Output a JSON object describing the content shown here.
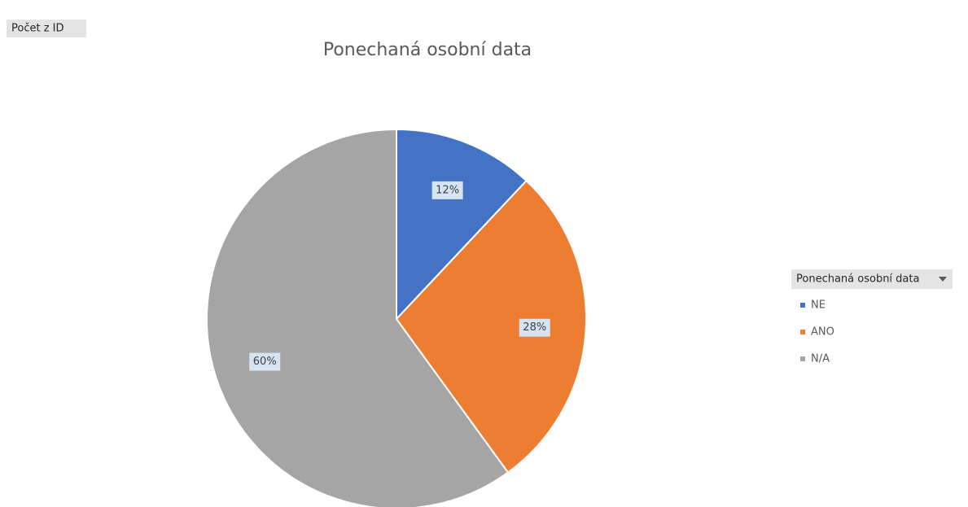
{
  "chart_data": {
    "type": "pie",
    "title": "Ponechaná osobní data",
    "field_button": "Počet z ID",
    "legend_title": "Ponechaná osobní data",
    "categories": [
      "NE",
      "ANO",
      "N/A"
    ],
    "values": [
      12,
      28,
      60
    ],
    "value_labels": [
      "12%",
      "28%",
      "60%"
    ],
    "colors": [
      "#4472c4",
      "#ed7d31",
      "#a5a5a5"
    ],
    "legend": "right"
  }
}
